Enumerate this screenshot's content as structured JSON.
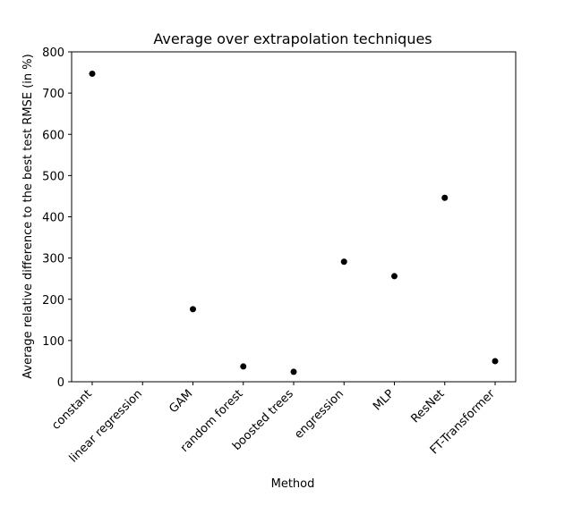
{
  "chart_data": {
    "type": "scatter",
    "title": "Average over extrapolation techniques",
    "xlabel": "Method",
    "ylabel": "Average relative difference to the best test RMSE (in %)",
    "categories": [
      "constant",
      "linear regression",
      "GAM",
      "random forest",
      "boosted trees",
      "engression",
      "MLP",
      "ResNet",
      "FT-Transformer"
    ],
    "values": [
      747,
      null,
      176,
      37,
      24,
      291,
      256,
      446,
      50
    ],
    "ylim": [
      0,
      800
    ],
    "yticks": [
      0,
      100,
      200,
      300,
      400,
      500,
      600,
      700,
      800
    ],
    "grid": false,
    "marker_color": "#000000"
  }
}
